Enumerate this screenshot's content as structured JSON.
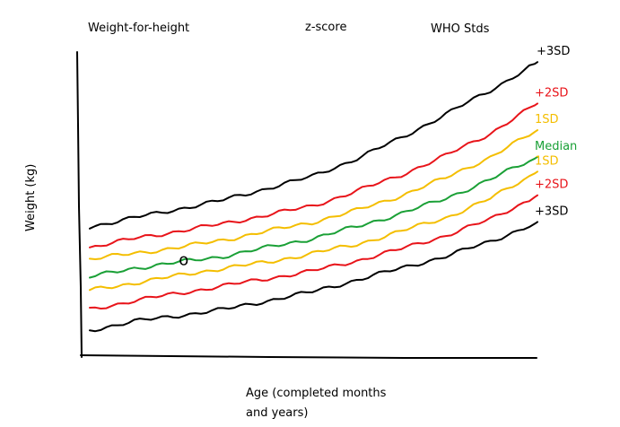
{
  "chart_data": {
    "type": "line",
    "title": "Weight-for-height",
    "subtitle_center": "z-score",
    "subtitle_right": "WHO Stds",
    "xlabel": "Age (completed months and years)",
    "xlabel_lines": [
      "Age (completed months",
      "and years)"
    ],
    "ylabel": "Weight (kg)",
    "grid": false,
    "x_ticks": [],
    "y_ticks": [],
    "xlim": [
      0,
      10
    ],
    "ylim": [
      0,
      10
    ],
    "x": [
      0,
      1,
      2,
      3,
      4,
      5,
      6,
      7,
      8,
      9,
      10
    ],
    "series": [
      {
        "name": "+3SD",
        "color": "#000000",
        "values": [
          4.1,
          4.4,
          4.7,
          5.0,
          5.4,
          5.8,
          6.4,
          7.1,
          7.9,
          8.7,
          9.6
        ]
      },
      {
        "name": "+2SD",
        "color": "#e8141a",
        "values": [
          3.4,
          3.7,
          3.95,
          4.2,
          4.5,
          4.8,
          5.3,
          5.85,
          6.5,
          7.25,
          8.2
        ]
      },
      {
        "name": "1SD",
        "color": "#f4be00",
        "values": [
          3.0,
          3.2,
          3.4,
          3.65,
          3.95,
          4.25,
          4.65,
          5.15,
          5.75,
          6.45,
          7.3
        ]
      },
      {
        "name": "Median",
        "color": "#1aa036",
        "values": [
          2.4,
          2.7,
          2.9,
          3.1,
          3.4,
          3.7,
          4.1,
          4.55,
          5.05,
          5.7,
          6.4
        ]
      },
      {
        "name": "1SD",
        "color": "#f4be00",
        "values": [
          1.95,
          2.2,
          2.45,
          2.7,
          2.9,
          3.2,
          3.5,
          3.95,
          4.4,
          5.05,
          5.9
        ]
      },
      {
        "name": "+2SD",
        "color": "#e8141a",
        "values": [
          1.3,
          1.6,
          1.85,
          2.1,
          2.35,
          2.6,
          2.95,
          3.35,
          3.8,
          4.35,
          5.1
        ]
      },
      {
        "name": "+3SD",
        "color": "#000000",
        "values": [
          0.6,
          0.9,
          1.1,
          1.3,
          1.6,
          1.9,
          2.3,
          2.7,
          3.1,
          3.6,
          4.2
        ]
      }
    ],
    "annotations": [
      {
        "text": "o",
        "x": 2.0,
        "y": 2.9
      }
    ]
  }
}
